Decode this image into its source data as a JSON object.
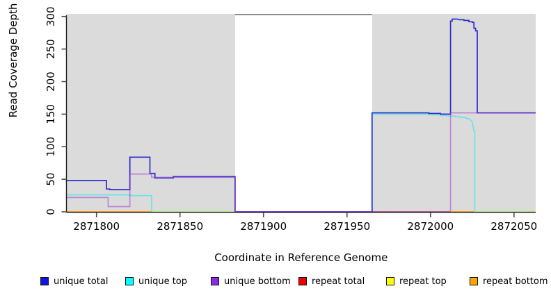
{
  "chart_data": {
    "type": "line",
    "title": "",
    "xlabel": "Coordinate in Reference Genome",
    "ylabel": "Read Coverage Depth",
    "xlim": [
      2871782,
      2872063
    ],
    "ylim": [
      0,
      304
    ],
    "x_ticks": [
      2871800,
      2871850,
      2871900,
      2871950,
      2872000,
      2872050
    ],
    "y_ticks": [
      0,
      50,
      100,
      150,
      200,
      250,
      300
    ],
    "grid": false,
    "legend_position": "bottom",
    "background_color": "#ffffff",
    "shaded_region_color": "#dbdbdb",
    "shaded_regions": [
      {
        "x0": 2871782,
        "x1": 2871883
      },
      {
        "x0": 2871965,
        "x1": 2872063
      }
    ],
    "gap_top_line": {
      "x0": 2871883,
      "x1": 2871965,
      "y": 303,
      "color": "#8c8c8c"
    },
    "axis_color": "#1a1a1a",
    "tick_color": "#4d4d4d",
    "series": [
      {
        "name": "unique top",
        "color": "#00EEEE",
        "alpha": 0.5,
        "segments": [
          [
            [
              2871782,
              26
            ],
            [
              2871820,
              26
            ],
            [
              2871820,
              25
            ],
            [
              2871833,
              25
            ],
            [
              2871833,
              0
            ],
            [
              2871883,
              0
            ]
          ],
          [
            [
              2871965,
              0
            ],
            [
              2871965,
              150
            ],
            [
              2871999,
              150
            ],
            [
              2871999,
              149
            ],
            [
              2872006,
              149
            ],
            [
              2872006,
              148
            ],
            [
              2872012,
              147
            ],
            [
              2872015,
              147
            ],
            [
              2872015,
              146
            ],
            [
              2872018,
              146
            ],
            [
              2872018,
              145
            ],
            [
              2872021,
              145
            ],
            [
              2872021,
              144
            ],
            [
              2872023,
              143
            ],
            [
              2872024,
              141
            ],
            [
              2872025,
              138
            ],
            [
              2872025.5,
              131
            ],
            [
              2872026,
              125
            ],
            [
              2872026.5,
              125
            ],
            [
              2872026.5,
              0
            ],
            [
              2872063,
              0
            ]
          ]
        ]
      },
      {
        "name": "repeat top",
        "color": "#EEEE00",
        "alpha": 0.5,
        "segments": [
          [
            [
              2871833,
              0
            ],
            [
              2871883,
              0
            ]
          ],
          [
            [
              2872027,
              0
            ],
            [
              2872063,
              0
            ]
          ]
        ]
      },
      {
        "name": "repeat total",
        "color": "#CC0000",
        "alpha": 0.55,
        "segments": [
          [
            [
              2871965,
              0
            ],
            [
              2872012,
              0
            ]
          ]
        ]
      },
      {
        "name": "unique total",
        "color": "#0000CC",
        "alpha": 0.8,
        "segments": [
          [
            [
              2871782,
              48
            ],
            [
              2871806,
              48
            ],
            [
              2871806,
              35
            ],
            [
              2871808,
              35
            ],
            [
              2871808,
              34
            ],
            [
              2871820,
              34
            ],
            [
              2871820,
              84
            ],
            [
              2871832,
              84
            ],
            [
              2871832,
              59
            ],
            [
              2871835,
              59
            ],
            [
              2871835,
              52
            ],
            [
              2871846,
              52
            ],
            [
              2871846,
              54
            ],
            [
              2871883,
              54
            ],
            [
              2871883,
              0
            ],
            [
              2871965,
              0
            ],
            [
              2871965,
              152
            ],
            [
              2871999,
              152
            ],
            [
              2871999,
              151
            ],
            [
              2872006,
              151
            ],
            [
              2872006,
              150
            ],
            [
              2872012,
              150
            ],
            [
              2872012,
              293
            ],
            [
              2872013,
              293
            ],
            [
              2872013,
              296
            ],
            [
              2872016,
              296
            ],
            [
              2872017,
              295
            ],
            [
              2872020,
              295
            ],
            [
              2872020,
              294
            ],
            [
              2872023,
              294
            ],
            [
              2872023,
              292
            ],
            [
              2872025,
              292
            ],
            [
              2872025,
              291
            ],
            [
              2872026,
              291
            ],
            [
              2872026,
              282
            ],
            [
              2872027,
              282
            ],
            [
              2872027,
              278
            ],
            [
              2872028,
              278
            ],
            [
              2872028,
              152
            ],
            [
              2872063,
              152
            ]
          ]
        ]
      },
      {
        "name": "unique bottom",
        "color": "#9932CC",
        "alpha": 0.5,
        "segments": [
          [
            [
              2871782,
              22
            ],
            [
              2871807,
              22
            ],
            [
              2871807,
              8
            ],
            [
              2871820,
              8
            ],
            [
              2871820,
              58
            ],
            [
              2871833,
              58
            ],
            [
              2871833,
              53
            ],
            [
              2871883,
              53
            ],
            [
              2871883,
              0
            ],
            [
              2872012,
              0
            ],
            [
              2872012,
              152
            ],
            [
              2872063,
              152
            ]
          ]
        ]
      },
      {
        "name": "repeat bottom",
        "color": "#FF8C00",
        "alpha": 0.95,
        "segments": [
          [
            [
              2871782,
              0
            ],
            [
              2871833,
              0
            ]
          ],
          [
            [
              2872012,
              0
            ],
            [
              2872026,
              0
            ]
          ]
        ]
      }
    ]
  },
  "axis_titles": {
    "x": "Coordinate in Reference Genome",
    "y": "Read Coverage Depth"
  },
  "legend": {
    "items": [
      {
        "label": "unique total",
        "color": "#1414E1"
      },
      {
        "label": "unique top",
        "color": "#00FFFF"
      },
      {
        "label": "unique bottom",
        "color": "#8B2BE2"
      },
      {
        "label": "repeat total",
        "color": "#EE0000"
      },
      {
        "label": "repeat top",
        "color": "#FFFF00"
      },
      {
        "label": "repeat bottom",
        "color": "#FFA500"
      }
    ]
  }
}
